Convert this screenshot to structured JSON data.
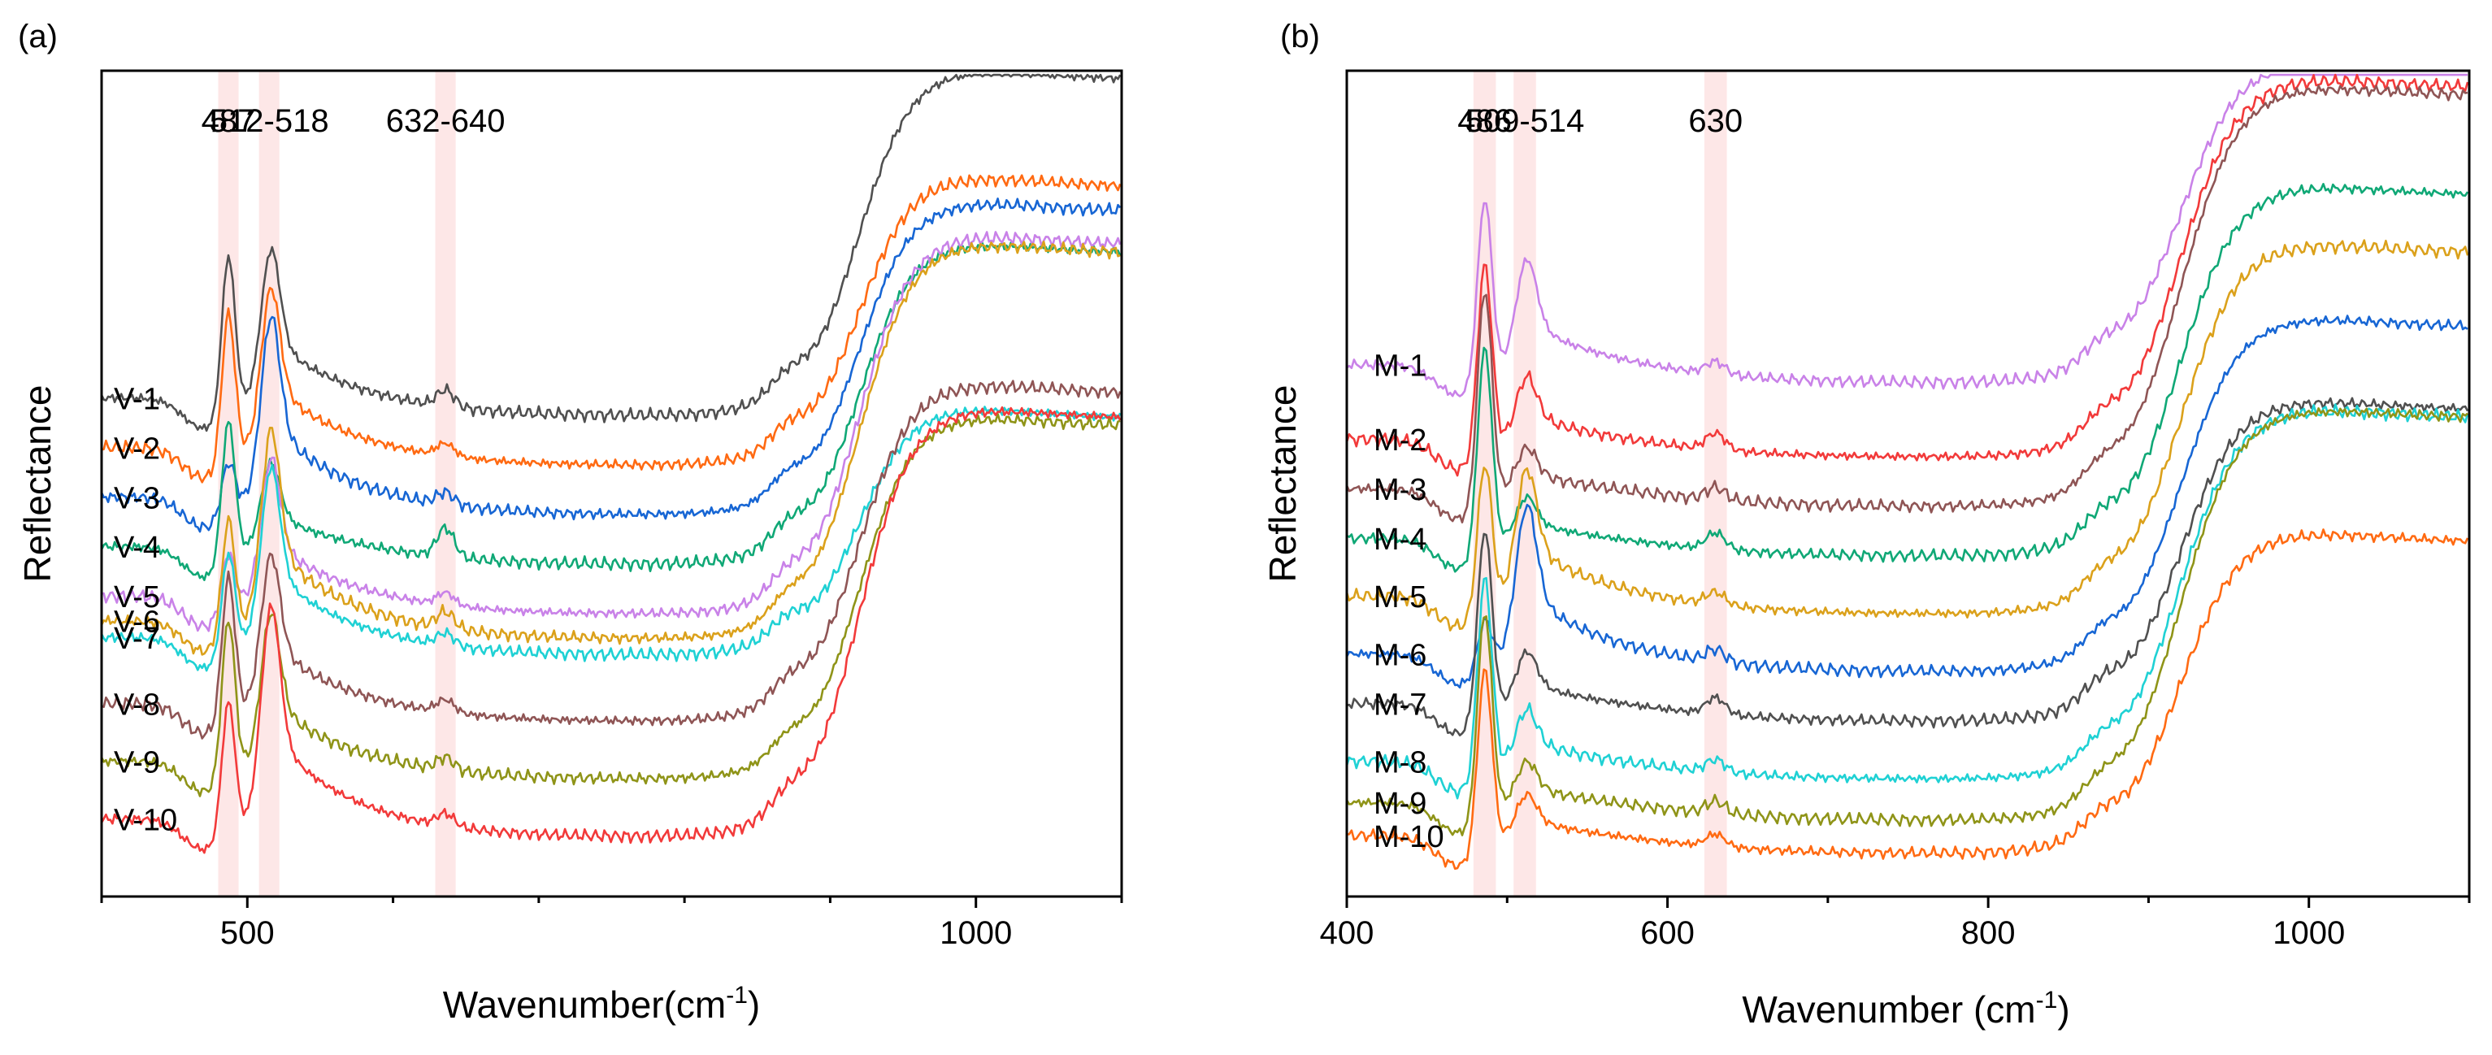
{
  "chart_data": [
    {
      "type": "line",
      "panel_label": "(a)",
      "xlabel": "Wavenumber(cm",
      "xlabel_sup": "-1",
      "xlabel_tail": ")",
      "ylabel": "Reflectance",
      "xlim": [
        400,
        1100
      ],
      "ylim": [
        0,
        1
      ],
      "yticks_shown": false,
      "xticks": [
        500,
        1000
      ],
      "xtick_labels": [
        "500",
        "1000"
      ],
      "bands": [
        {
          "center": 487,
          "label": "487"
        },
        {
          "center": 515,
          "label": "512-518"
        },
        {
          "center": 636,
          "label": "632-640"
        }
      ],
      "series": [
        {
          "name": "V-1",
          "color": "#505050",
          "baseline": 0.58,
          "top": 0.98,
          "peaks": [
            {
              "x": 487,
              "h": 0.19
            },
            {
              "x": 515,
              "h": 0.14
            },
            {
              "x": 636,
              "h": 0.02
            }
          ]
        },
        {
          "name": "V-2",
          "color": "#ff6a12",
          "baseline": 0.52,
          "top": 0.85,
          "peaks": [
            {
              "x": 487,
              "h": 0.18
            },
            {
              "x": 515,
              "h": 0.15
            },
            {
              "x": 636,
              "h": 0.015
            }
          ]
        },
        {
          "name": "V-3",
          "color": "#1766d4",
          "baseline": 0.46,
          "top": 0.82,
          "peaks": [
            {
              "x": 487,
              "h": 0.06
            },
            {
              "x": 515,
              "h": 0.17
            },
            {
              "x": 636,
              "h": 0.015
            }
          ]
        },
        {
          "name": "V-4",
          "color": "#10a876",
          "baseline": 0.4,
          "top": 0.77,
          "peaks": [
            {
              "x": 487,
              "h": 0.17
            },
            {
              "x": 515,
              "h": 0.08
            },
            {
              "x": 636,
              "h": 0.035
            }
          ]
        },
        {
          "name": "V-5",
          "color": "#c982e8",
          "baseline": 0.34,
          "top": 0.78,
          "peaks": [
            {
              "x": 487,
              "h": 0.07
            },
            {
              "x": 515,
              "h": 0.13
            },
            {
              "x": 636,
              "h": 0.015
            }
          ]
        },
        {
          "name": "V-6",
          "color": "#dba11b",
          "baseline": 0.31,
          "top": 0.77,
          "peaks": [
            {
              "x": 487,
              "h": 0.14
            },
            {
              "x": 515,
              "h": 0.18
            },
            {
              "x": 636,
              "h": 0.02
            }
          ]
        },
        {
          "name": "V-7",
          "color": "#1fd1d4",
          "baseline": 0.29,
          "top": 0.57,
          "peaks": [
            {
              "x": 487,
              "h": 0.12
            },
            {
              "x": 515,
              "h": 0.16
            },
            {
              "x": 636,
              "h": 0.015
            }
          ]
        },
        {
          "name": "V-8",
          "color": "#8f5555",
          "baseline": 0.21,
          "top": 0.6,
          "peaks": [
            {
              "x": 487,
              "h": 0.17
            },
            {
              "x": 515,
              "h": 0.14
            },
            {
              "x": 636,
              "h": 0.015
            }
          ]
        },
        {
          "name": "V-9",
          "color": "#8f9418",
          "baseline": 0.14,
          "top": 0.56,
          "peaks": [
            {
              "x": 487,
              "h": 0.19
            },
            {
              "x": 515,
              "h": 0.14
            },
            {
              "x": 636,
              "h": 0.015
            }
          ]
        },
        {
          "name": "V-10",
          "color": "#f23a3a",
          "baseline": 0.07,
          "top": 0.57,
          "peaks": [
            {
              "x": 487,
              "h": 0.16
            },
            {
              "x": 515,
              "h": 0.2
            },
            {
              "x": 636,
              "h": 0.015
            }
          ]
        }
      ]
    },
    {
      "type": "line",
      "panel_label": "(b)",
      "xlabel": "Wavenumber (cm",
      "xlabel_sup": "-1",
      "xlabel_tail": ")",
      "ylabel": "Reflectance",
      "xlim": [
        400,
        1100
      ],
      "ylim": [
        0,
        1
      ],
      "yticks_shown": false,
      "xticks": [
        400,
        600,
        800,
        1000
      ],
      "xtick_labels": [
        "400",
        "600",
        "800",
        "1000"
      ],
      "bands": [
        {
          "center": 486,
          "label": "486"
        },
        {
          "center": 511,
          "label": "509-514"
        },
        {
          "center": 630,
          "label": "630"
        }
      ],
      "series": [
        {
          "name": "M-1",
          "color": "#c982e8",
          "baseline": 0.62,
          "top": 0.99,
          "peaks": [
            {
              "x": 486,
              "h": 0.22
            },
            {
              "x": 511,
              "h": 0.1
            },
            {
              "x": 630,
              "h": 0.015
            }
          ]
        },
        {
          "name": "M-2",
          "color": "#f23a3a",
          "baseline": 0.53,
          "top": 0.97,
          "peaks": [
            {
              "x": 486,
              "h": 0.23
            },
            {
              "x": 511,
              "h": 0.06
            },
            {
              "x": 630,
              "h": 0.02
            }
          ]
        },
        {
          "name": "M-3",
          "color": "#8f5555",
          "baseline": 0.47,
          "top": 0.96,
          "peaks": [
            {
              "x": 486,
              "h": 0.26
            },
            {
              "x": 511,
              "h": 0.04
            },
            {
              "x": 630,
              "h": 0.015
            }
          ]
        },
        {
          "name": "M-4",
          "color": "#10a876",
          "baseline": 0.41,
          "top": 0.84,
          "peaks": [
            {
              "x": 486,
              "h": 0.25
            },
            {
              "x": 511,
              "h": 0.04
            },
            {
              "x": 630,
              "h": 0.02
            }
          ]
        },
        {
          "name": "M-5",
          "color": "#dba11b",
          "baseline": 0.34,
          "top": 0.77,
          "peaks": [
            {
              "x": 486,
              "h": 0.18
            },
            {
              "x": 511,
              "h": 0.12
            },
            {
              "x": 630,
              "h": 0.015
            }
          ]
        },
        {
          "name": "M-6",
          "color": "#1766d4",
          "baseline": 0.27,
          "top": 0.68,
          "peaks": [
            {
              "x": 486,
              "h": 0.06
            },
            {
              "x": 511,
              "h": 0.14
            },
            {
              "x": 630,
              "h": 0.015
            }
          ]
        },
        {
          "name": "M-7",
          "color": "#505050",
          "baseline": 0.21,
          "top": 0.58,
          "peaks": [
            {
              "x": 486,
              "h": 0.23
            },
            {
              "x": 511,
              "h": 0.05
            },
            {
              "x": 630,
              "h": 0.02
            }
          ]
        },
        {
          "name": "M-8",
          "color": "#1fd1d4",
          "baseline": 0.14,
          "top": 0.57,
          "peaks": [
            {
              "x": 486,
              "h": 0.24
            },
            {
              "x": 511,
              "h": 0.05
            },
            {
              "x": 630,
              "h": 0.015
            }
          ]
        },
        {
          "name": "M-9",
          "color": "#8f9418",
          "baseline": 0.09,
          "top": 0.57,
          "peaks": [
            {
              "x": 486,
              "h": 0.25
            },
            {
              "x": 511,
              "h": 0.04
            },
            {
              "x": 630,
              "h": 0.015
            }
          ]
        },
        {
          "name": "M-10",
          "color": "#ff6a12",
          "baseline": 0.05,
          "top": 0.42,
          "peaks": [
            {
              "x": 486,
              "h": 0.22
            },
            {
              "x": 511,
              "h": 0.04
            },
            {
              "x": 630,
              "h": 0.015
            }
          ]
        }
      ]
    }
  ]
}
